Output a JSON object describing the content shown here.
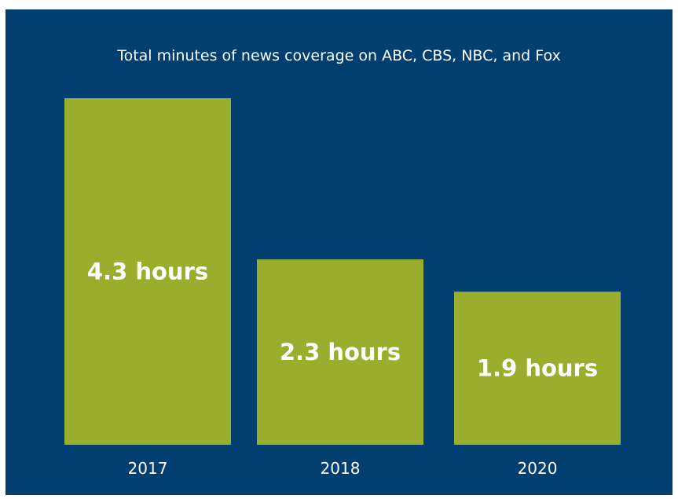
{
  "chart_data": {
    "type": "bar",
    "title": "Total minutes of news coverage on ABC, CBS, NBC, and Fox",
    "categories": [
      "2017",
      "2018",
      "2020"
    ],
    "values": [
      4.3,
      2.3,
      1.9
    ],
    "value_labels": [
      "4.3 hours",
      "2.3 hours",
      "1.9 hours"
    ],
    "unit": "hours",
    "xlabel": "",
    "ylabel": "",
    "ylim": [
      0,
      4.3
    ],
    "grid": false,
    "colors": {
      "background": "#003f6f",
      "bar": "#9aad2c",
      "text": "#ffffff"
    }
  }
}
